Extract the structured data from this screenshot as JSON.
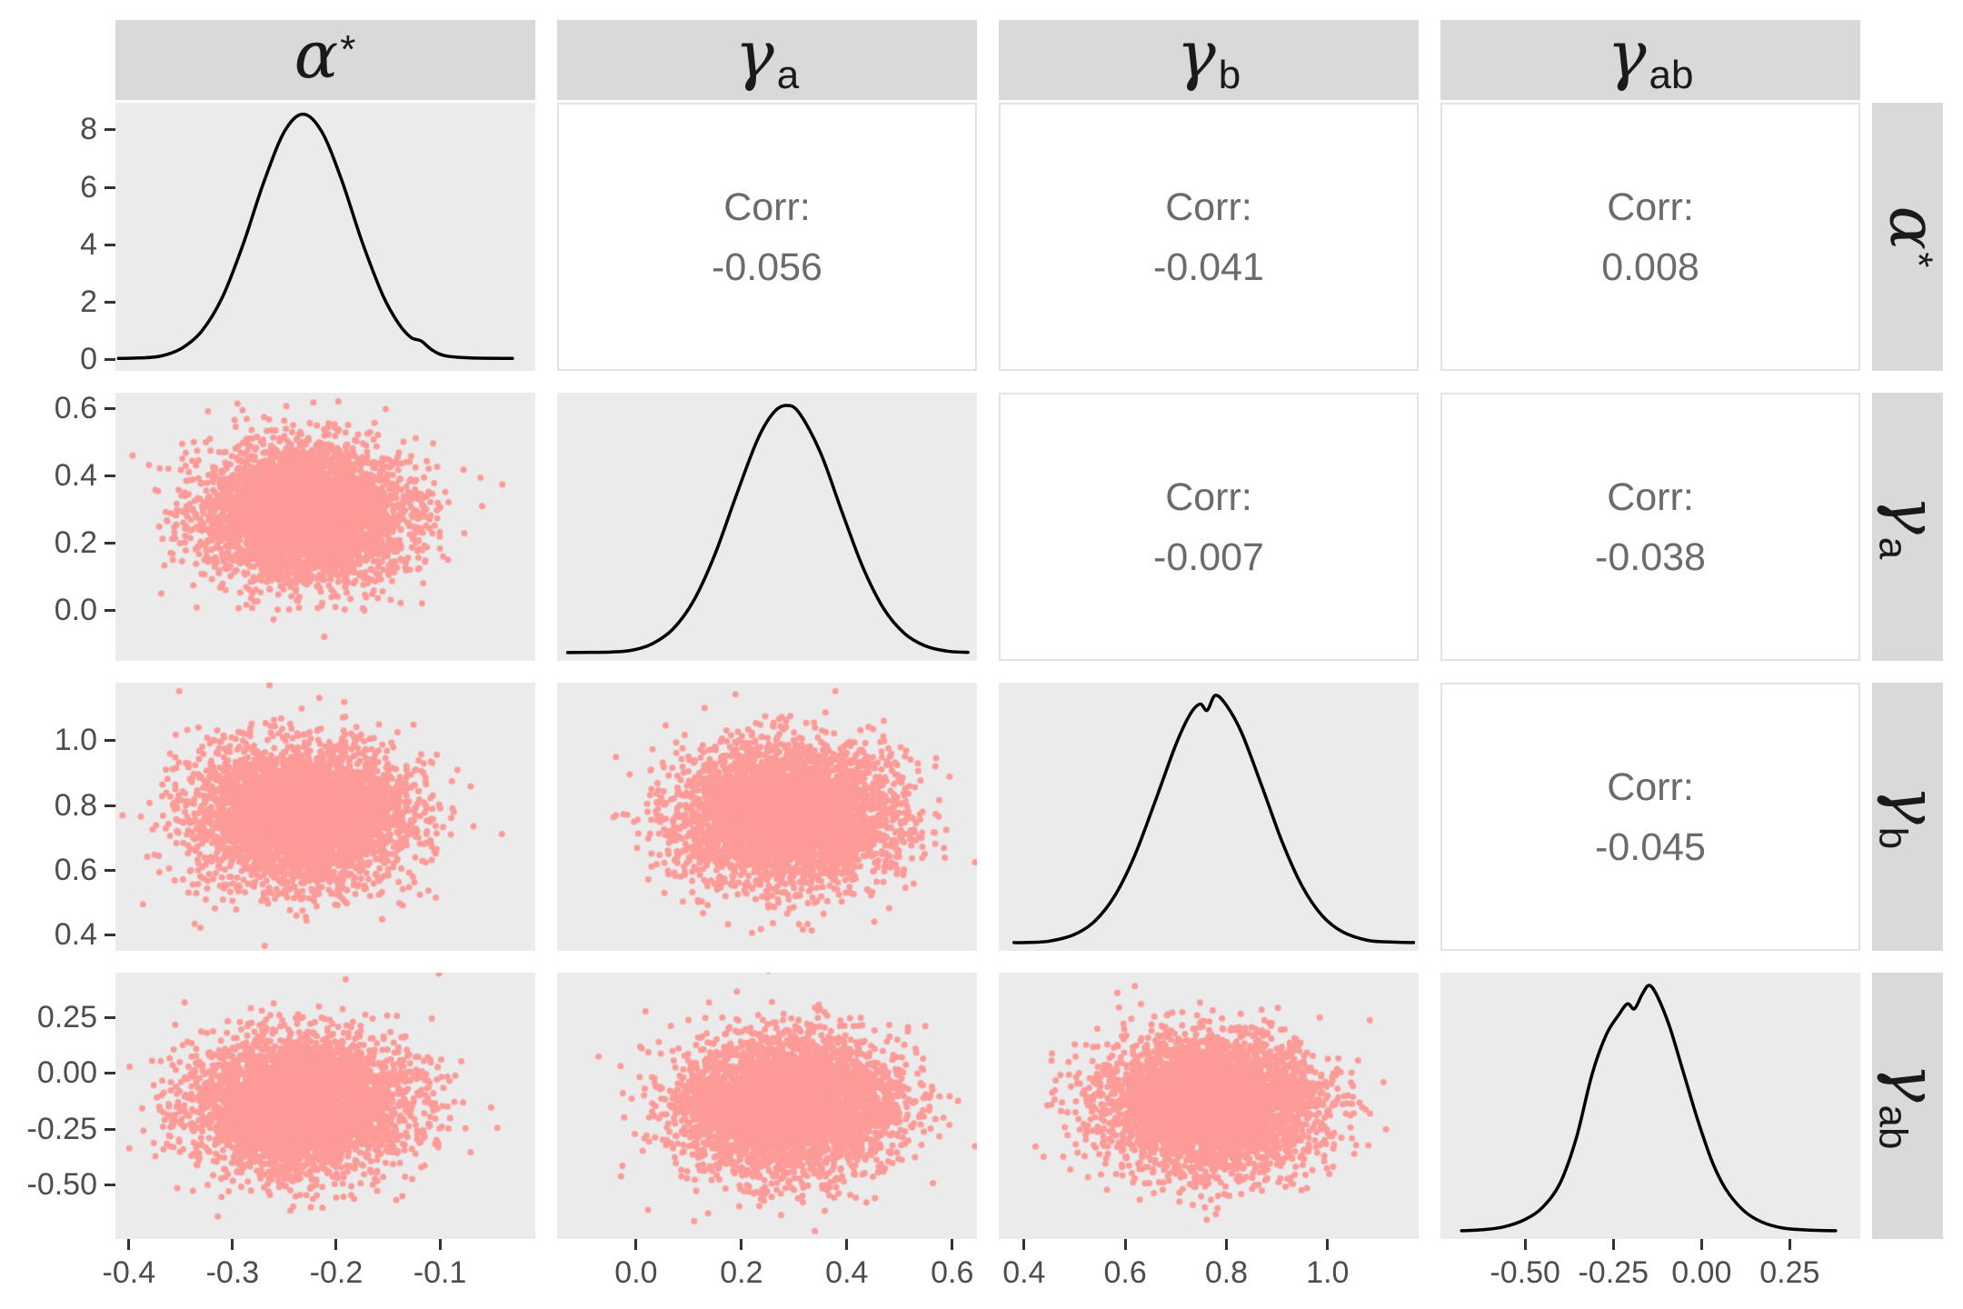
{
  "chart_data": {
    "type": "scatterplot-matrix",
    "description": "Pairs plot of posterior draws: density curves on diagonal, scatter clouds in lower triangle, correlation coefficients in upper triangle",
    "corr_label": "Corr:",
    "corr": {
      "r1c2": "-0.056",
      "r1c3": "-0.041",
      "r1c4": "0.008",
      "r2c3": "-0.007",
      "r2c4": "-0.038",
      "r3c4": "-0.045"
    },
    "style": {
      "panel_bg": "#EBEBEB",
      "strip_bg": "#D9D9D9",
      "strip_text": "#1A1A1A",
      "corr_text": "#6B6B6B",
      "corr_panel_bg": "#FFFFFF",
      "corr_panel_border": "#E3E3E3",
      "tick_label_color": "#4D4D4D",
      "tick_mark_color": "#333333",
      "density_line_color": "#000000",
      "density_line_width": 3.5,
      "point_color": "#FC9B98",
      "point_radius": 3.5,
      "n_points": 4500,
      "grid": "off",
      "legend": "none"
    },
    "variables": [
      {
        "id": "alpha-star",
        "strip_base": "α",
        "strip_sup": "*",
        "strip_sub": "",
        "domain": [
          -0.413,
          -0.008
        ],
        "ticks": [
          "-0.4",
          "-0.3",
          "-0.2",
          "-0.1"
        ],
        "tick_values": [
          -0.4,
          -0.3,
          -0.2,
          -0.1
        ],
        "mean": -0.232,
        "sd": 0.05,
        "density_x": [
          -0.41,
          -0.39,
          -0.37,
          -0.35,
          -0.33,
          -0.31,
          -0.29,
          -0.27,
          -0.25,
          -0.232,
          -0.214,
          -0.195,
          -0.175,
          -0.155,
          -0.14,
          -0.128,
          -0.118,
          -0.108,
          -0.095,
          -0.07,
          -0.03
        ],
        "density_y": [
          0.004,
          0.006,
          0.013,
          0.043,
          0.114,
          0.252,
          0.467,
          0.721,
          0.929,
          1.0,
          0.929,
          0.734,
          0.479,
          0.261,
          0.147,
          0.09,
          0.075,
          0.04,
          0.015,
          0.006,
          0.004
        ],
        "density_axis": {
          "ticks": [
            "0",
            "2",
            "4",
            "6",
            "8"
          ],
          "tick_values": [
            0,
            2,
            4,
            6,
            8
          ],
          "ylim": [
            -0.4,
            8.95
          ],
          "peak_density": 8.55
        }
      },
      {
        "id": "gamma-a",
        "strip_base": "γ",
        "strip_sup": "",
        "strip_sub": "a",
        "domain": [
          -0.15,
          0.647
        ],
        "ticks": [
          "0.0",
          "0.2",
          "0.4",
          "0.6"
        ],
        "tick_values": [
          0.0,
          0.2,
          0.4,
          0.6
        ],
        "mean": 0.285,
        "sd": 0.1,
        "density_x": [
          -0.13,
          -0.09,
          -0.05,
          -0.01,
          0.03,
          0.07,
          0.11,
          0.15,
          0.19,
          0.23,
          0.26,
          0.285,
          0.31,
          0.35,
          0.39,
          0.43,
          0.47,
          0.51,
          0.55,
          0.59,
          0.63
        ],
        "density_y": [
          0.004,
          0.005,
          0.006,
          0.013,
          0.039,
          0.099,
          0.216,
          0.402,
          0.637,
          0.86,
          0.969,
          1.0,
          0.969,
          0.81,
          0.576,
          0.35,
          0.181,
          0.08,
          0.03,
          0.01,
          0.005
        ]
      },
      {
        "id": "gamma-b",
        "strip_base": "γ",
        "strip_sup": "",
        "strip_sub": "b",
        "domain": [
          0.35,
          1.18
        ],
        "ticks": [
          "0.4",
          "0.6",
          "0.8",
          "1.0"
        ],
        "tick_values": [
          0.4,
          0.6,
          0.8,
          1.0
        ],
        "mean": 0.77,
        "sd": 0.105,
        "density_x": [
          0.38,
          0.4,
          0.45,
          0.5,
          0.54,
          0.58,
          0.62,
          0.66,
          0.7,
          0.728,
          0.748,
          0.762,
          0.778,
          0.8,
          0.83,
          0.87,
          0.91,
          0.95,
          0.99,
          1.03,
          1.08,
          1.13,
          1.17
        ],
        "density_y": [
          0.004,
          0.004,
          0.01,
          0.037,
          0.091,
          0.195,
          0.361,
          0.578,
          0.801,
          0.923,
          0.965,
          0.94,
          1.0,
          0.96,
          0.85,
          0.635,
          0.411,
          0.23,
          0.111,
          0.047,
          0.013,
          0.006,
          0.004
        ]
      },
      {
        "id": "gamma-ab",
        "strip_base": "γ",
        "strip_sup": "",
        "strip_sub": "ab",
        "domain": [
          -0.74,
          0.45
        ],
        "ticks": [
          "-0.50",
          "-0.25",
          "0.00",
          "0.25"
        ],
        "tick_values": [
          -0.5,
          -0.25,
          0.0,
          0.25
        ],
        "mean": -0.14,
        "sd": 0.148,
        "density_x": [
          -0.68,
          -0.62,
          -0.56,
          -0.5,
          -0.45,
          -0.4,
          -0.355,
          -0.31,
          -0.27,
          -0.235,
          -0.21,
          -0.19,
          -0.168,
          -0.148,
          -0.125,
          -0.09,
          -0.05,
          -0.01,
          0.03,
          0.07,
          0.12,
          0.17,
          0.23,
          0.3,
          0.38
        ],
        "density_y": [
          0.004,
          0.008,
          0.02,
          0.05,
          0.1,
          0.2,
          0.38,
          0.64,
          0.8,
          0.88,
          0.925,
          0.905,
          0.965,
          1.0,
          0.955,
          0.83,
          0.64,
          0.45,
          0.285,
          0.17,
          0.085,
          0.04,
          0.015,
          0.007,
          0.004
        ]
      }
    ]
  }
}
